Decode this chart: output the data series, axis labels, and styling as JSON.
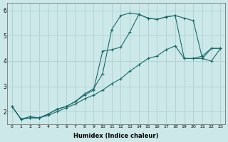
{
  "xlabel": "Humidex (Indice chaleur)",
  "bg_color": "#cce8e8",
  "grid_color": "#aacccc",
  "line_color": "#1a6b6b",
  "xlim": [
    -0.5,
    23.5
  ],
  "ylim": [
    1.5,
    6.3
  ],
  "yticks": [
    2,
    3,
    4,
    5,
    6
  ],
  "xticks": [
    0,
    1,
    2,
    3,
    4,
    5,
    6,
    7,
    8,
    9,
    10,
    11,
    12,
    13,
    14,
    15,
    16,
    17,
    18,
    19,
    20,
    21,
    22,
    23
  ],
  "line1_x": [
    0,
    1,
    2,
    3,
    4,
    5,
    6,
    7,
    8,
    9,
    10,
    11,
    12,
    13,
    14,
    15,
    16,
    17,
    18,
    19,
    20,
    21,
    22,
    23
  ],
  "line1_y": [
    2.2,
    1.7,
    1.8,
    1.75,
    1.9,
    2.1,
    2.2,
    2.4,
    2.7,
    2.9,
    3.5,
    5.25,
    5.8,
    5.9,
    5.85,
    5.7,
    5.65,
    5.75,
    5.8,
    5.7,
    5.6,
    4.1,
    4.0,
    4.5
  ],
  "line2_x": [
    0,
    1,
    2,
    3,
    4,
    5,
    6,
    7,
    8,
    9,
    10,
    11,
    12,
    13,
    14,
    15,
    16,
    17,
    18,
    19,
    20,
    21,
    22,
    23
  ],
  "line2_y": [
    2.2,
    1.7,
    1.75,
    1.75,
    1.9,
    2.1,
    2.2,
    2.4,
    2.65,
    2.85,
    4.4,
    4.45,
    4.55,
    5.15,
    5.85,
    5.7,
    5.65,
    5.75,
    5.8,
    4.1,
    4.1,
    4.1,
    4.5,
    4.5
  ],
  "line3_x": [
    0,
    1,
    2,
    3,
    4,
    5,
    6,
    7,
    8,
    9,
    10,
    11,
    12,
    13,
    14,
    15,
    16,
    17,
    18,
    19,
    20,
    21,
    22,
    23
  ],
  "line3_y": [
    2.2,
    1.7,
    1.75,
    1.75,
    1.85,
    2.0,
    2.15,
    2.3,
    2.5,
    2.65,
    2.85,
    3.1,
    3.3,
    3.6,
    3.85,
    4.1,
    4.2,
    4.45,
    4.6,
    4.1,
    4.1,
    4.2,
    4.5,
    4.5
  ]
}
